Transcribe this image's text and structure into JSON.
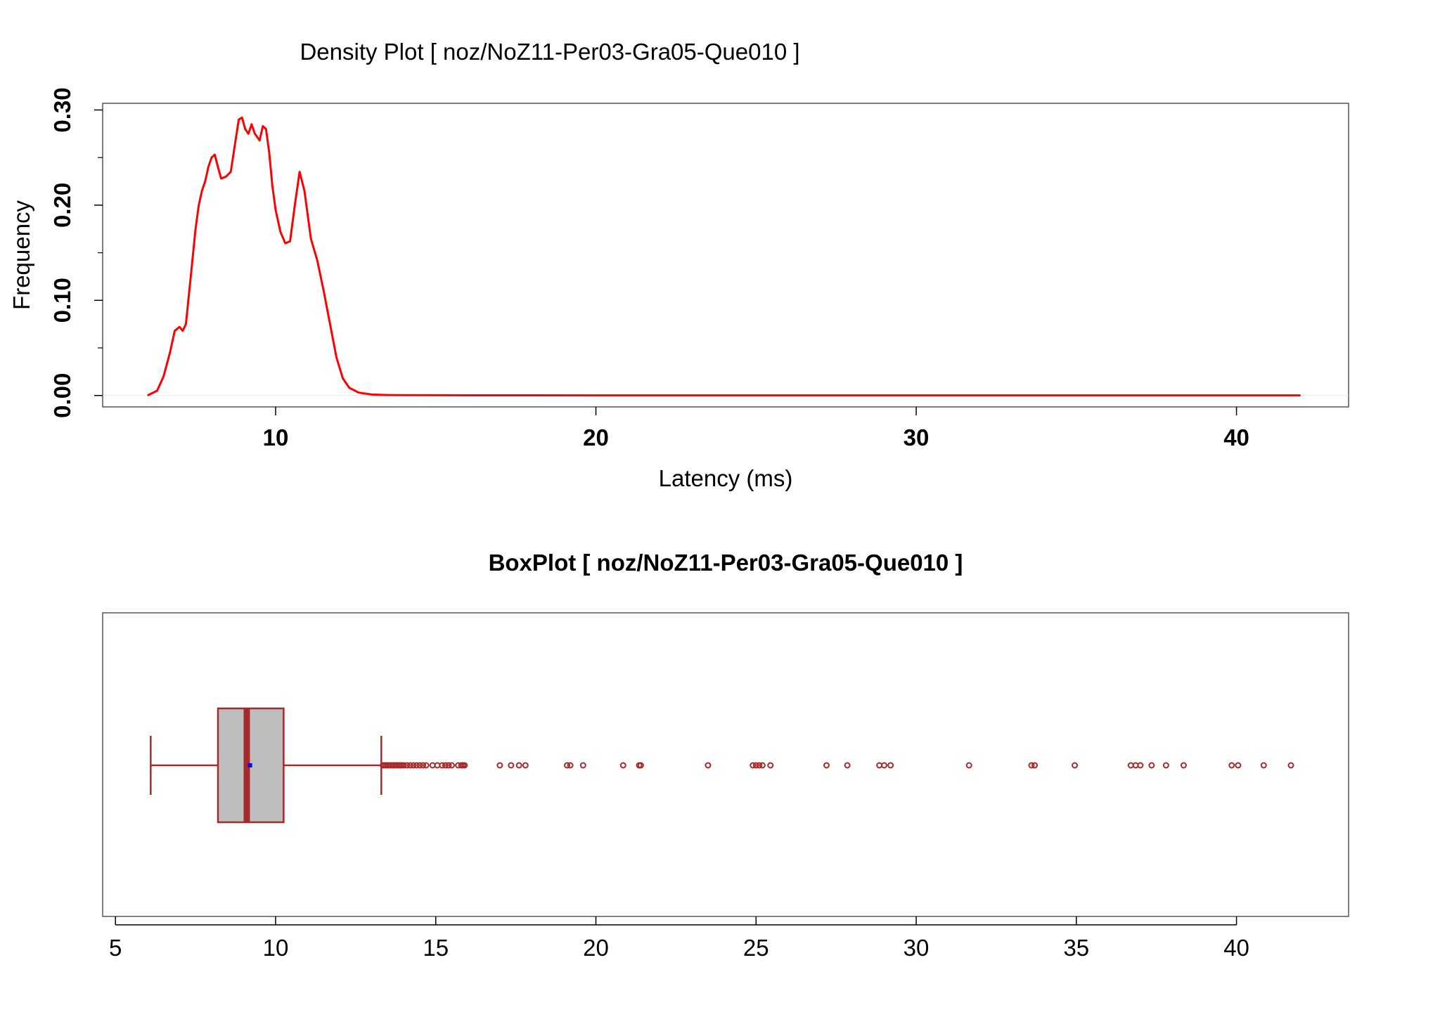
{
  "chart_data": [
    {
      "type": "line",
      "title": "Density Plot [ noz/NoZ11-Per03-Gra05-Que010 ]",
      "xlabel": "Latency (ms)",
      "ylabel": "Frequency",
      "xlim": [
        4.6,
        43.5
      ],
      "ylim": [
        -0.012,
        0.307
      ],
      "x_ticks": [
        10,
        20,
        30,
        40
      ],
      "y_ticks": [
        0.0,
        0.1,
        0.2,
        0.3
      ],
      "y_tick_labels": [
        "0.00",
        "0.10",
        "0.20",
        "0.30"
      ],
      "y_minor_ticks": [
        0.05,
        0.15,
        0.25
      ],
      "grid": false,
      "line_color": "#ff0000",
      "series": [
        {
          "x": [
            6.0,
            6.3,
            6.5,
            6.7,
            6.85,
            7.0,
            7.1,
            7.2,
            7.35,
            7.5,
            7.6,
            7.7,
            7.8,
            7.9,
            8.0,
            8.1,
            8.2,
            8.3,
            8.45,
            8.6,
            8.75,
            8.85,
            8.95,
            9.05,
            9.15,
            9.25,
            9.35,
            9.5,
            9.6,
            9.7,
            9.8,
            9.9,
            10.0,
            10.15,
            10.3,
            10.45,
            10.6,
            10.75,
            10.9,
            11.1,
            11.3,
            11.5,
            11.7,
            11.9,
            12.1,
            12.3,
            12.6,
            13.0,
            13.5,
            14.0,
            16.0,
            20.0,
            25.0,
            30.0,
            35.0,
            40.0,
            42.0
          ],
          "y": [
            0.0,
            0.005,
            0.02,
            0.045,
            0.068,
            0.072,
            0.068,
            0.075,
            0.125,
            0.175,
            0.2,
            0.215,
            0.225,
            0.24,
            0.25,
            0.253,
            0.24,
            0.228,
            0.23,
            0.235,
            0.268,
            0.29,
            0.292,
            0.28,
            0.275,
            0.285,
            0.275,
            0.268,
            0.283,
            0.28,
            0.255,
            0.22,
            0.195,
            0.172,
            0.16,
            0.162,
            0.2,
            0.235,
            0.215,
            0.165,
            0.142,
            0.11,
            0.075,
            0.04,
            0.018,
            0.008,
            0.003,
            0.001,
            0.0005,
            0.0003,
            0.0002,
            0.0001,
            0.0001,
            0.0001,
            0.0001,
            0.0001,
            0.0001
          ]
        }
      ]
    },
    {
      "type": "box",
      "title": "BoxPlot [ noz/NoZ11-Per03-Gra05-Que010 ]",
      "xlabel": "",
      "xlim": [
        4.6,
        43.5
      ],
      "x_ticks": [
        5,
        10,
        15,
        20,
        25,
        30,
        35,
        40
      ],
      "box_fill": "#bebebe",
      "box_color": "#a52a2a",
      "mean_color": "#0000ff",
      "whisker_low": 6.1,
      "q1": 8.2,
      "median": 9.1,
      "mean": 9.2,
      "q3": 10.25,
      "whisker_high": 13.3,
      "outliers": [
        13.35,
        13.4,
        13.45,
        13.5,
        13.55,
        13.6,
        13.65,
        13.7,
        13.75,
        13.8,
        13.85,
        13.9,
        13.95,
        14.0,
        14.1,
        14.2,
        14.3,
        14.4,
        14.5,
        14.6,
        14.7,
        14.9,
        15.05,
        15.2,
        15.3,
        15.4,
        15.5,
        15.7,
        15.8,
        15.85,
        15.9,
        17.0,
        17.35,
        17.6,
        17.8,
        19.1,
        19.2,
        19.6,
        20.85,
        21.35,
        21.4,
        23.5,
        24.9,
        25.0,
        25.1,
        25.2,
        25.45,
        27.2,
        27.85,
        28.85,
        29.0,
        29.2,
        31.65,
        33.6,
        33.7,
        34.95,
        36.7,
        36.85,
        37.0,
        37.35,
        37.8,
        38.35,
        39.85,
        40.05,
        40.85,
        41.7
      ]
    }
  ]
}
